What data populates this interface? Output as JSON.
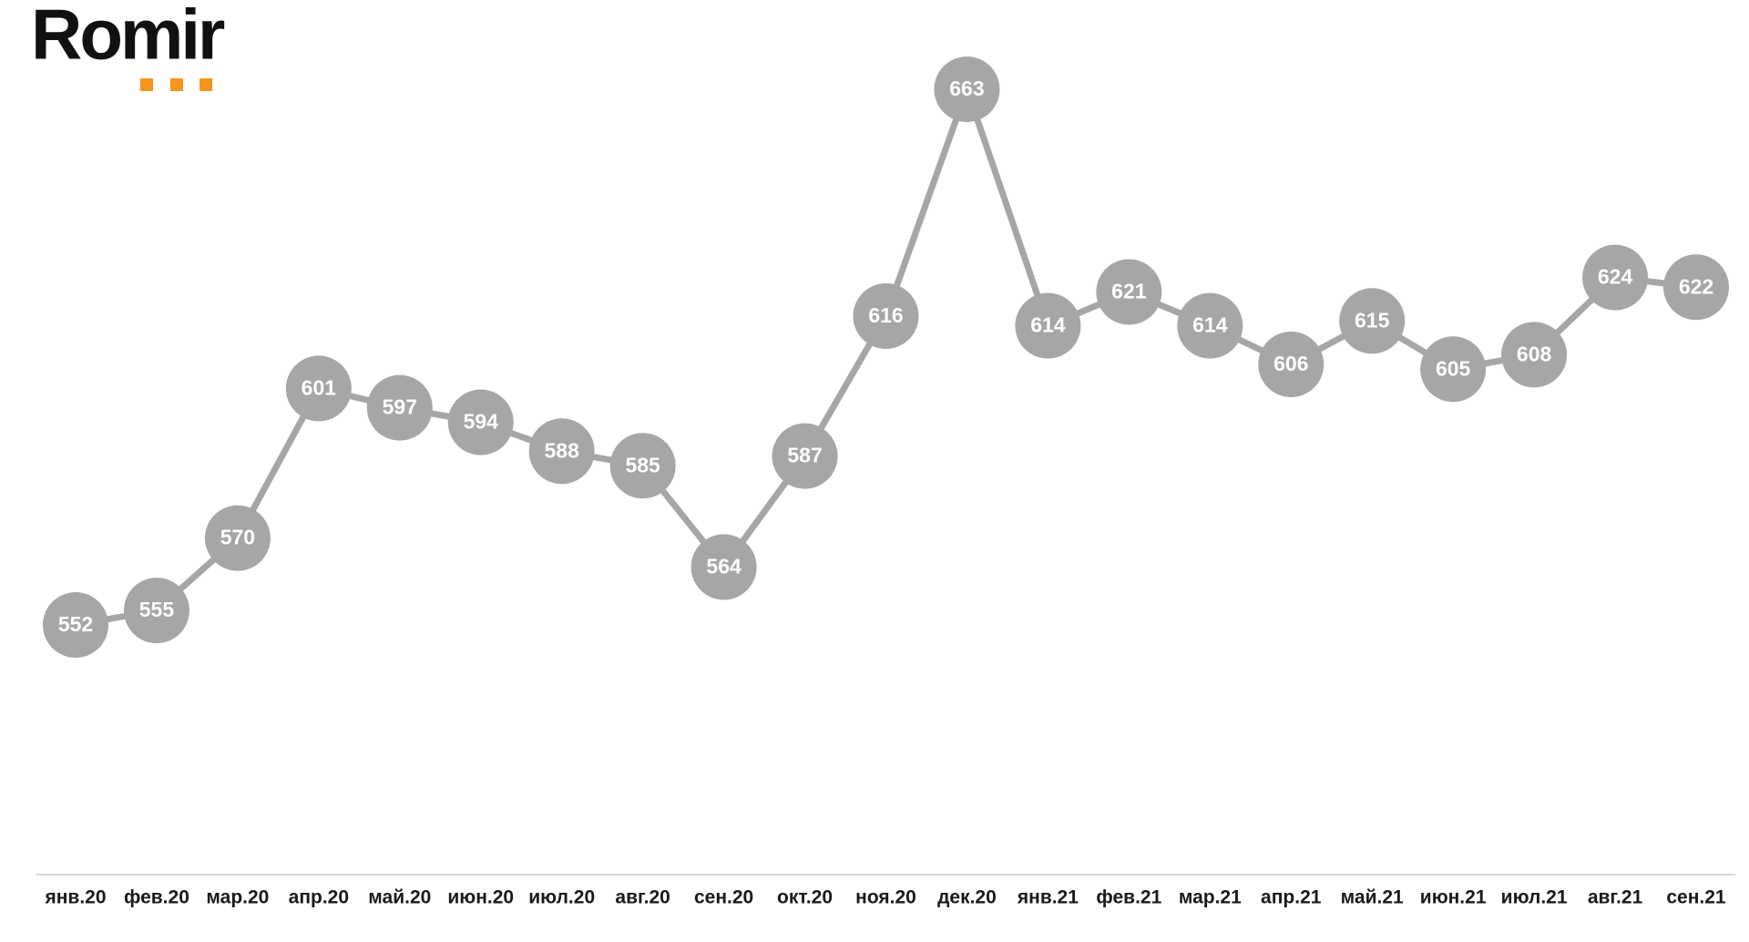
{
  "logo": "Romir",
  "chart_data": {
    "type": "line",
    "categories": [
      "янв.20",
      "фев.20",
      "мар.20",
      "апр.20",
      "май.20",
      "июн.20",
      "июл.20",
      "авг.20",
      "сен.20",
      "окт.20",
      "ноя.20",
      "дек.20",
      "янв.21",
      "фев.21",
      "мар.21",
      "апр.21",
      "май.21",
      "июн.21",
      "июл.21",
      "авг.21",
      "сен.21"
    ],
    "values": [
      552,
      555,
      570,
      601,
      597,
      594,
      588,
      585,
      564,
      587,
      616,
      663,
      614,
      621,
      614,
      606,
      615,
      605,
      608,
      624,
      622
    ],
    "color": "#a6a6a6"
  }
}
